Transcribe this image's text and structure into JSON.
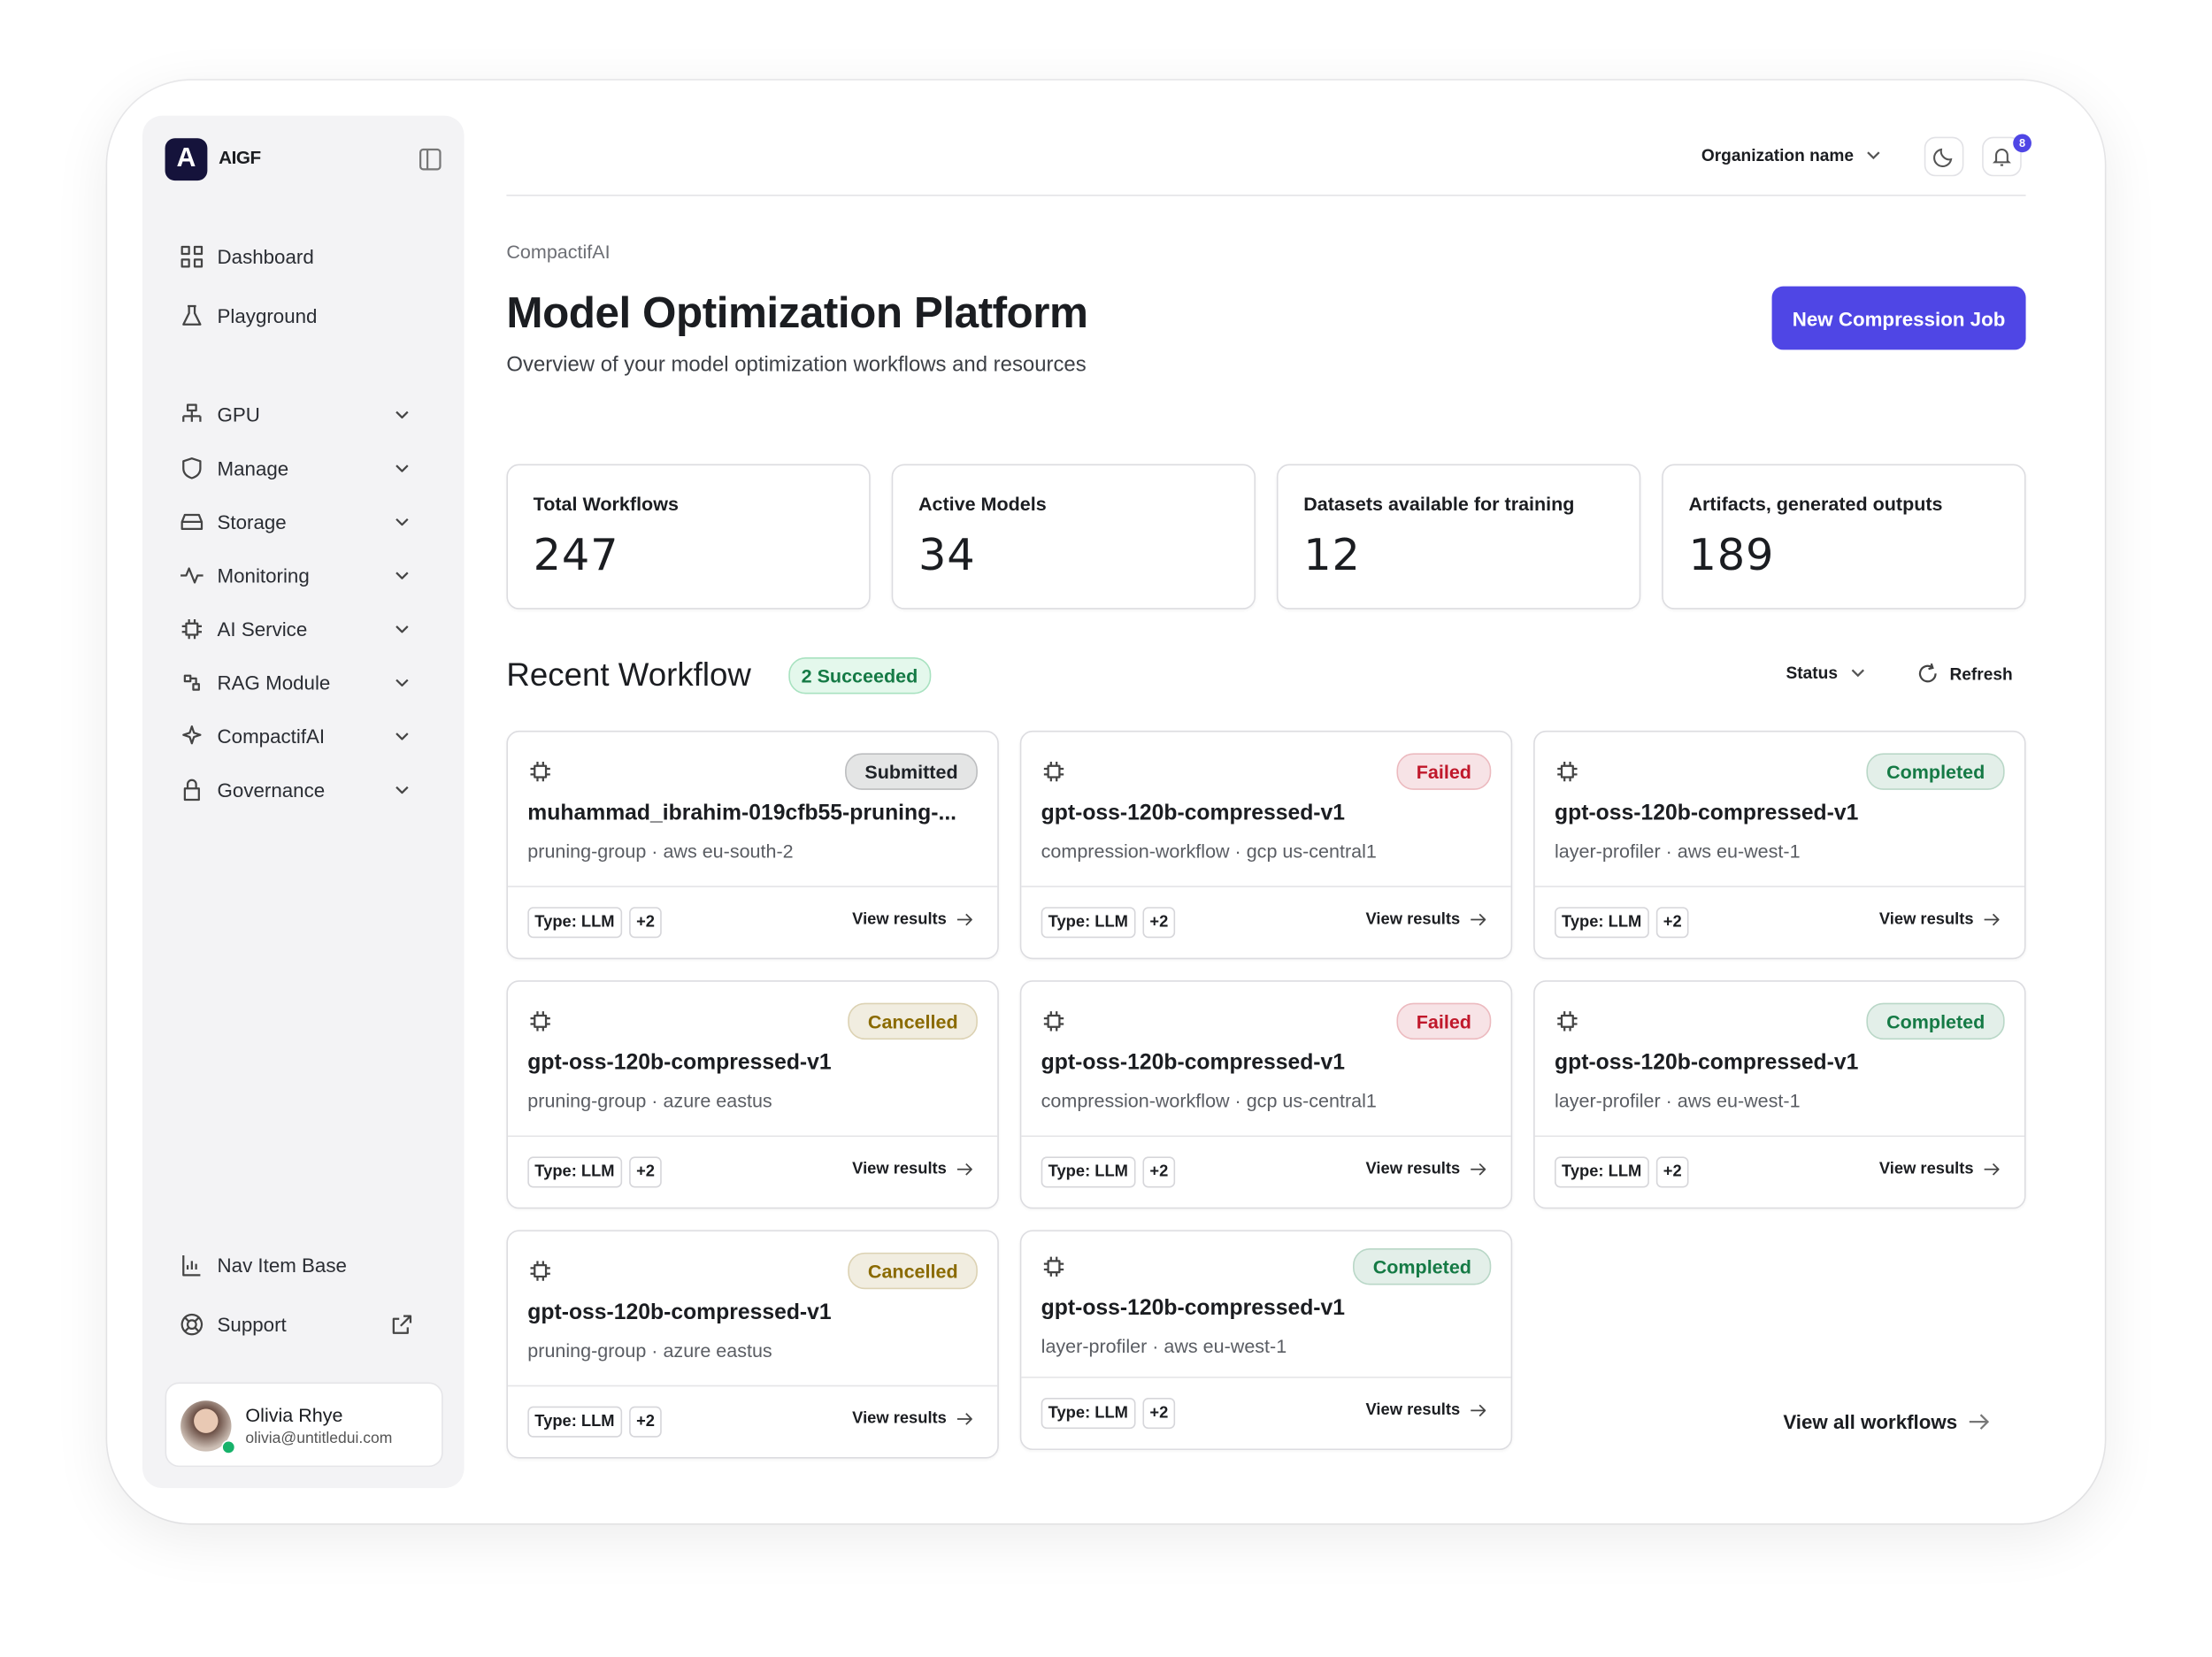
{
  "brand": {
    "logo": "A",
    "name": "AIGF"
  },
  "nav": {
    "primary": [
      "Dashboard",
      "Playground"
    ],
    "groups": [
      "GPU",
      "Manage",
      "Storage",
      "Monitoring",
      "AI Service",
      "RAG Module",
      "CompactifAI",
      "Governance"
    ],
    "footer": [
      "Nav Item Base",
      "Support"
    ]
  },
  "user": {
    "name": "Olivia Rhye",
    "email": "olivia@untitledui.com"
  },
  "header": {
    "org": "Organization name",
    "notifications": 8
  },
  "page": {
    "breadcrumb": "CompactifAI",
    "title": "Model Optimization Platform",
    "subtitle": "Overview of your model optimization workflows and resources",
    "action": "New Compression Job"
  },
  "stats": [
    {
      "label": "Total Workflows",
      "value": 247
    },
    {
      "label": "Active Models",
      "value": 34
    },
    {
      "label": "Datasets available for training",
      "value": 12
    },
    {
      "label": "Artifacts, generated outputs",
      "value": 189
    }
  ],
  "workflows": {
    "title": "Recent Workflow",
    "badge": "2 Succeeded",
    "filter": "Status",
    "refresh": "Refresh",
    "card_link": "View results",
    "view_all": "View all workflows",
    "items": [
      {
        "status": "Submitted",
        "color": "#1f2328",
        "name": "muhammad_ibrahim-019cfb55-pruning-...",
        "meta": "pruning-group · aws eu-south-2",
        "type": "Type: LLM",
        "extra": "+2"
      },
      {
        "status": "Failed",
        "color": "#c0182b",
        "name": "gpt-oss-120b-compressed-v1",
        "meta": "compression-workflow · gcp us-central1",
        "type": "Type: LLM",
        "extra": "+2"
      },
      {
        "status": "Completed",
        "color": "#157a45",
        "name": "gpt-oss-120b-compressed-v1",
        "meta": "layer-profiler · aws eu-west-1",
        "type": "Type: LLM",
        "extra": "+2"
      },
      {
        "status": "Cancelled",
        "color": "#8a6a00",
        "name": "gpt-oss-120b-compressed-v1",
        "meta": "pruning-group · azure eastus",
        "type": "Type: LLM",
        "extra": "+2"
      },
      {
        "status": "Failed",
        "color": "#c0182b",
        "name": "gpt-oss-120b-compressed-v1",
        "meta": "compression-workflow · gcp us-central1",
        "type": "Type: LLM",
        "extra": "+2"
      },
      {
        "status": "Completed",
        "color": "#157a45",
        "name": "gpt-oss-120b-compressed-v1",
        "meta": "layer-profiler · aws eu-west-1",
        "type": "Type: LLM",
        "extra": "+2"
      },
      {
        "status": "Cancelled",
        "color": "#8a6a00",
        "name": "gpt-oss-120b-compressed-v1",
        "meta": "pruning-group · azure eastus",
        "type": "Type: LLM",
        "extra": "+2"
      },
      {
        "status": "Completed",
        "color": "#157a45",
        "name": "gpt-oss-120b-compressed-v1",
        "meta": "layer-profiler · aws eu-west-1",
        "type": "Type: LLM",
        "extra": "+2"
      }
    ]
  }
}
